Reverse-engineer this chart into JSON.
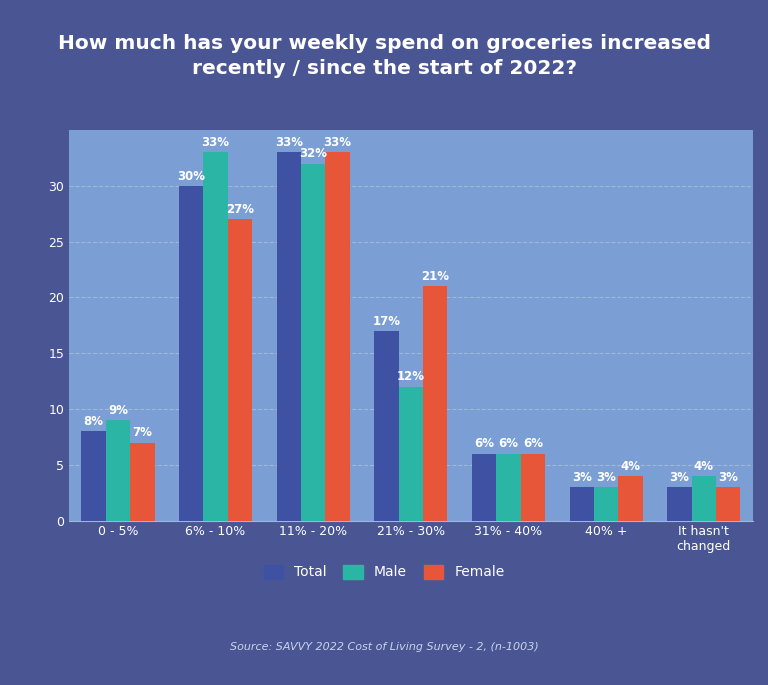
{
  "title": "How much has your weekly spend on groceries increased\nrecently / since the start of 2022?",
  "categories": [
    "0 - 5%",
    "6% - 10%",
    "11% - 20%",
    "21% - 30%",
    "31% - 40%",
    "40% +",
    "It hasn't\nchanged"
  ],
  "total": [
    8,
    30,
    33,
    17,
    6,
    3,
    3
  ],
  "male": [
    9,
    33,
    32,
    12,
    6,
    3,
    4
  ],
  "female": [
    7,
    27,
    33,
    21,
    6,
    4,
    3
  ],
  "color_total": "#3f51a3",
  "color_male": "#2ab5a5",
  "color_female": "#e8563a",
  "bg_outer": "#4a5594",
  "bg_inner": "#7b9fd4",
  "text_color": "#ffffff",
  "grid_color": "#a0b8d8",
  "ylim": [
    0,
    35
  ],
  "yticks": [
    0,
    5,
    10,
    15,
    20,
    25,
    30
  ],
  "source": "Source: SAVVY 2022 Cost of Living Survey - 2, (n-1003)",
  "legend_labels": [
    "Total",
    "Male",
    "Female"
  ],
  "bar_width": 0.25,
  "label_fontsize": 8.5,
  "title_fontsize": 14.5,
  "tick_fontsize": 9,
  "source_fontsize": 8
}
